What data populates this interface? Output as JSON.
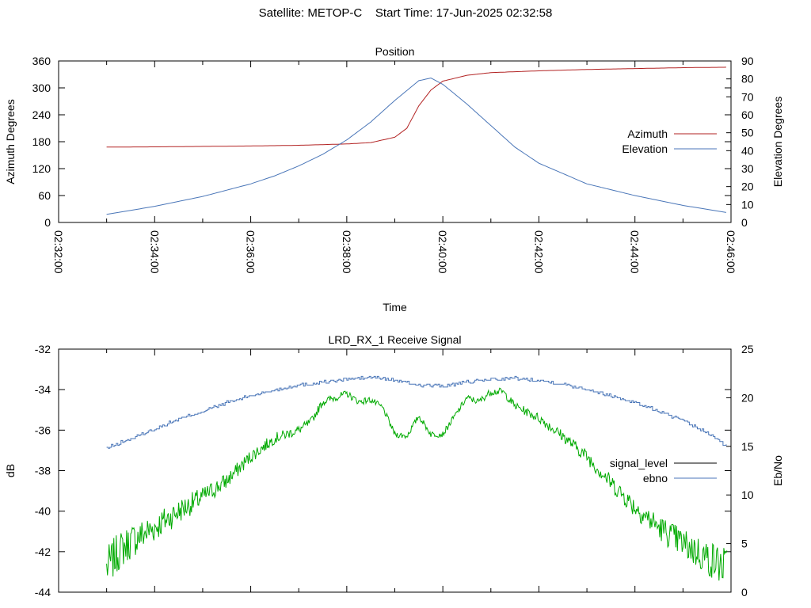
{
  "header": {
    "satellite_label": "Satellite: METOP-C",
    "start_time_label": "Start Time: 17-Jun-2025 02:32:58"
  },
  "chart_data": [
    {
      "type": "line",
      "title": "Position",
      "xlabel": "Time",
      "ylabel": "Azimuth Degrees",
      "y2label": "Elevation Degrees",
      "xlim": [
        "02:32:00",
        "02:46:00"
      ],
      "ylim": [
        0,
        360
      ],
      "y2lim": [
        0,
        90
      ],
      "x_ticks": [
        "02:32:00",
        "02:34:00",
        "02:36:00",
        "02:38:00",
        "02:40:00",
        "02:42:00",
        "02:44:00",
        "02:46:00"
      ],
      "y_ticks": [
        "0",
        "60",
        "120",
        "180",
        "240",
        "300",
        "360"
      ],
      "y2_ticks": [
        "0",
        "10",
        "20",
        "30",
        "40",
        "50",
        "60",
        "70",
        "80",
        "90"
      ],
      "legend_position": "right",
      "series": [
        {
          "name": "Azimuth",
          "axis": "y",
          "color": "#b22222",
          "x": [
            "02:33:00",
            "02:34:00",
            "02:35:00",
            "02:36:00",
            "02:37:00",
            "02:37:30",
            "02:38:00",
            "02:38:30",
            "02:39:00",
            "02:39:15",
            "02:39:30",
            "02:39:45",
            "02:40:00",
            "02:40:30",
            "02:41:00",
            "02:42:00",
            "02:43:00",
            "02:44:00",
            "02:45:00",
            "02:45:55"
          ],
          "values": [
            168,
            168.5,
            169.5,
            170.5,
            172,
            173.5,
            175,
            178,
            190,
            210,
            260,
            295,
            315,
            328,
            334,
            338,
            341,
            343,
            345,
            346
          ]
        },
        {
          "name": "Elevation",
          "axis": "y2",
          "color": "#4a76b8",
          "x": [
            "02:33:00",
            "02:34:00",
            "02:35:00",
            "02:36:00",
            "02:36:30",
            "02:37:00",
            "02:37:30",
            "02:38:00",
            "02:38:30",
            "02:39:00",
            "02:39:30",
            "02:39:45",
            "02:40:00",
            "02:40:30",
            "02:41:00",
            "02:41:30",
            "02:42:00",
            "02:43:00",
            "02:44:00",
            "02:45:00",
            "02:45:55"
          ],
          "values": [
            4.5,
            9,
            14.5,
            21.5,
            26,
            31.5,
            38,
            46,
            56,
            68,
            79,
            80.5,
            77,
            66,
            54,
            42,
            33,
            21.5,
            15,
            9.5,
            5.5
          ]
        }
      ]
    },
    {
      "type": "line",
      "title": "LRD_RX_1 Receive Signal",
      "xlabel": "",
      "ylabel": "dB",
      "y2label": "Eb/No",
      "xlim": [
        "02:32:00",
        "02:46:00"
      ],
      "ylim": [
        -44,
        -32
      ],
      "y2lim": [
        0,
        25
      ],
      "y_ticks": [
        "-44",
        "-42",
        "-40",
        "-38",
        "-36",
        "-34",
        "-32"
      ],
      "y2_ticks": [
        "0",
        "5",
        "10",
        "15",
        "20",
        "25"
      ],
      "legend_position": "right",
      "series": [
        {
          "name": "signal_level",
          "axis": "y",
          "color": "#00aa00",
          "x": [
            "02:33:00",
            "02:33:15",
            "02:33:30",
            "02:34:00",
            "02:34:30",
            "02:35:00",
            "02:35:30",
            "02:36:00",
            "02:36:30",
            "02:37:00",
            "02:37:15",
            "02:37:30",
            "02:37:45",
            "02:38:00",
            "02:38:15",
            "02:38:30",
            "02:38:45",
            "02:39:00",
            "02:39:15",
            "02:39:30",
            "02:39:45",
            "02:40:00",
            "02:40:15",
            "02:40:30",
            "02:40:45",
            "02:41:00",
            "02:41:15",
            "02:41:30",
            "02:41:45",
            "02:42:00",
            "02:42:30",
            "02:43:00",
            "02:43:30",
            "02:44:00",
            "02:44:30",
            "02:45:00",
            "02:45:30",
            "02:45:55"
          ],
          "values": [
            -42.8,
            -42.0,
            -41.5,
            -40.8,
            -40.0,
            -39.3,
            -38.5,
            -37.3,
            -36.4,
            -36.0,
            -35.6,
            -34.6,
            -34.4,
            -34.2,
            -34.6,
            -34.5,
            -34.9,
            -36.2,
            -36.3,
            -35.3,
            -36.2,
            -36.2,
            -35.3,
            -34.4,
            -34.6,
            -34.1,
            -34.1,
            -34.8,
            -35.1,
            -35.4,
            -36.3,
            -37.3,
            -38.6,
            -39.8,
            -40.8,
            -41.6,
            -42.3,
            -42.8
          ]
        },
        {
          "name": "ebno",
          "axis": "y2",
          "color": "#4a76b8",
          "x": [
            "02:33:00",
            "02:33:30",
            "02:34:00",
            "02:34:30",
            "02:35:00",
            "02:35:30",
            "02:36:00",
            "02:36:30",
            "02:37:00",
            "02:37:30",
            "02:38:00",
            "02:38:30",
            "02:39:00",
            "02:39:30",
            "02:40:00",
            "02:40:30",
            "02:41:00",
            "02:41:30",
            "02:42:00",
            "02:42:30",
            "02:43:00",
            "02:43:30",
            "02:44:00",
            "02:44:30",
            "02:45:00",
            "02:45:30",
            "02:45:55"
          ],
          "values": [
            14.8,
            15.8,
            16.8,
            17.8,
            18.6,
            19.5,
            20.2,
            20.8,
            21.3,
            21.6,
            21.9,
            22.1,
            21.8,
            21.3,
            21.2,
            21.6,
            21.9,
            22.0,
            21.8,
            21.4,
            20.9,
            20.2,
            19.5,
            18.6,
            17.6,
            16.4,
            15.0
          ]
        }
      ]
    }
  ]
}
